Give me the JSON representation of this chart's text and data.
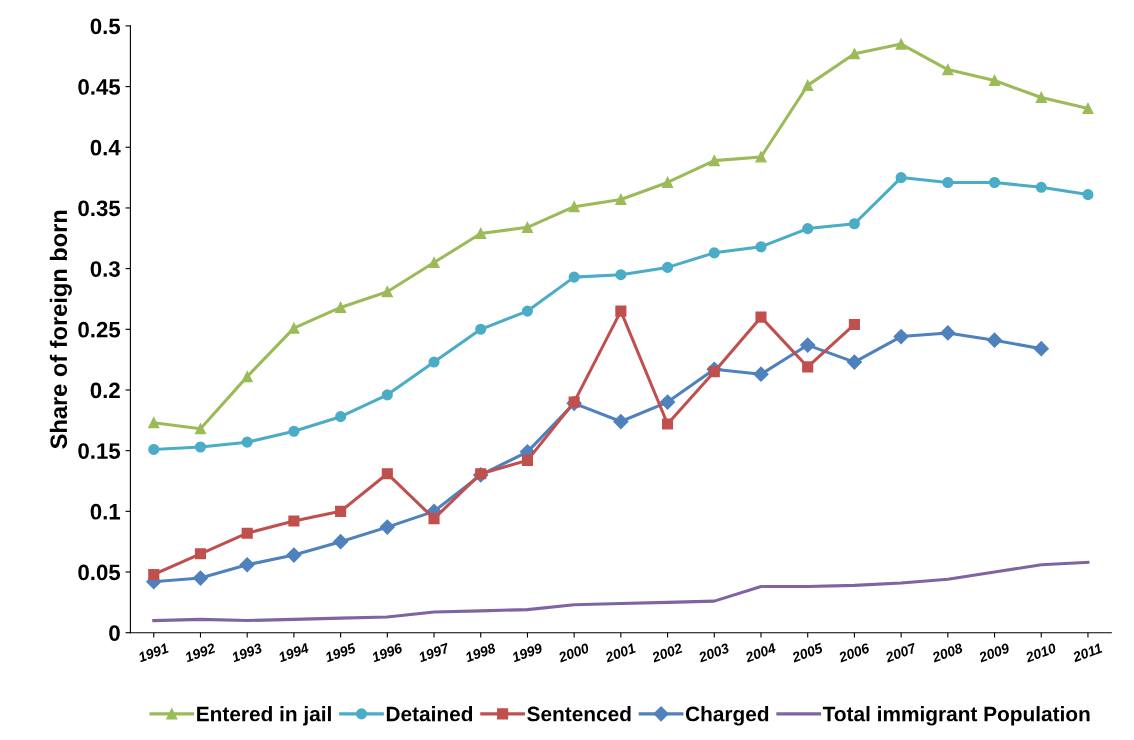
{
  "chart_data": {
    "type": "line",
    "ylabel": "Share of foreign born",
    "categories": [
      "1991",
      "1992",
      "1993",
      "1994",
      "1995",
      "1996",
      "1997",
      "1998",
      "1999",
      "2000",
      "2001",
      "2002",
      "2003",
      "2004",
      "2005",
      "2006",
      "2007",
      "2008",
      "2009",
      "2010",
      "2011"
    ],
    "series": [
      {
        "name": "Entered in jail",
        "color": "#9bbb59",
        "marker": "triangle",
        "values": [
          0.173,
          0.168,
          0.211,
          0.251,
          0.268,
          0.281,
          0.305,
          0.329,
          0.334,
          0.351,
          0.357,
          0.371,
          0.389,
          0.392,
          0.451,
          0.477,
          0.485,
          0.464,
          0.455,
          0.441,
          0.432
        ]
      },
      {
        "name": "Detained",
        "color": "#4bacc6",
        "marker": "circle",
        "values": [
          0.151,
          0.153,
          0.157,
          0.166,
          0.178,
          0.196,
          0.223,
          0.25,
          0.265,
          0.293,
          0.295,
          0.301,
          0.313,
          0.318,
          0.333,
          0.337,
          0.375,
          0.371,
          0.371,
          0.367,
          0.361
        ]
      },
      {
        "name": "Sentenced",
        "color": "#c0504d",
        "marker": "square",
        "values": [
          0.048,
          0.065,
          0.082,
          0.092,
          0.1,
          0.131,
          0.094,
          0.131,
          0.142,
          0.19,
          0.265,
          0.172,
          0.215,
          0.26,
          0.219,
          0.254,
          null,
          null,
          null,
          null,
          null
        ]
      },
      {
        "name": "Charged",
        "color": "#4f81bd",
        "marker": "diamond",
        "values": [
          0.042,
          0.045,
          0.056,
          0.064,
          0.075,
          0.087,
          0.1,
          0.13,
          0.149,
          0.189,
          0.174,
          0.19,
          0.217,
          0.213,
          0.237,
          0.223,
          0.244,
          0.247,
          0.241,
          0.234,
          null
        ]
      },
      {
        "name": "Total immigrant Population",
        "color": "#8064a2",
        "marker": "none",
        "values": [
          0.01,
          0.011,
          0.01,
          0.011,
          0.012,
          0.013,
          0.017,
          0.018,
          0.019,
          0.023,
          0.024,
          0.025,
          0.026,
          0.038,
          0.038,
          0.039,
          0.041,
          0.044,
          0.05,
          0.056,
          0.058
        ]
      }
    ],
    "ylim": [
      0,
      0.5
    ],
    "yticks": [
      0,
      0.05,
      0.1,
      0.15,
      0.2,
      0.25,
      0.3,
      0.35,
      0.4,
      0.45,
      0.5
    ],
    "grid": false,
    "legend": "bottom"
  }
}
